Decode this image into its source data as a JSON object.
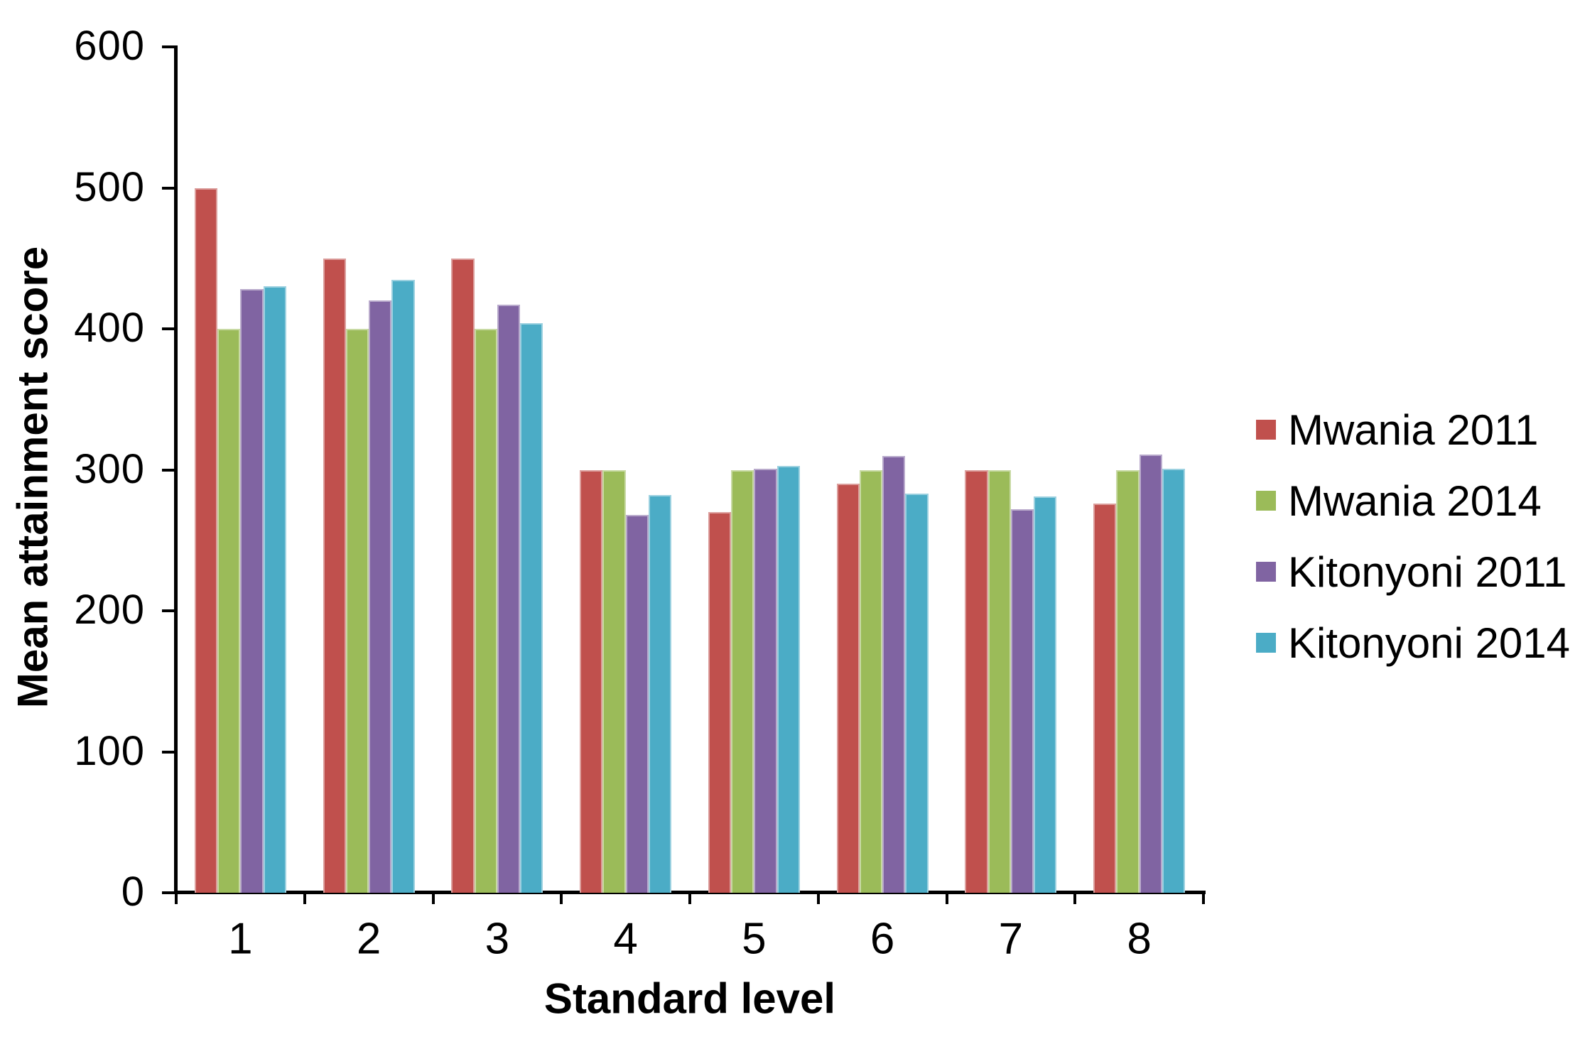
{
  "chart_data": {
    "type": "bar",
    "title": "",
    "xlabel": "Standard level",
    "ylabel": "Mean attainment score",
    "categories": [
      "1",
      "2",
      "3",
      "4",
      "5",
      "6",
      "7",
      "8"
    ],
    "series": [
      {
        "name": "Mwania 2011",
        "color": "#C0504D",
        "values": [
          500,
          450,
          450,
          300,
          270,
          290,
          300,
          276
        ]
      },
      {
        "name": "Mwania 2014",
        "color": "#9BBB59",
        "values": [
          400,
          400,
          400,
          300,
          300,
          300,
          300,
          300
        ]
      },
      {
        "name": "Kitonyoni 2011",
        "color": "#8064A2",
        "values": [
          428,
          420,
          417,
          268,
          301,
          310,
          272,
          311
        ]
      },
      {
        "name": "Kitonyoni 2014",
        "color": "#4BACC6",
        "values": [
          430,
          435,
          404,
          282,
          303,
          283,
          281,
          301
        ]
      }
    ],
    "ylim": [
      0,
      600
    ],
    "yticks": [
      0,
      100,
      200,
      300,
      400,
      500,
      600
    ],
    "legend_position": "right",
    "grid": false,
    "axis_color": "#000000",
    "background_color": "#FFFFFF"
  }
}
